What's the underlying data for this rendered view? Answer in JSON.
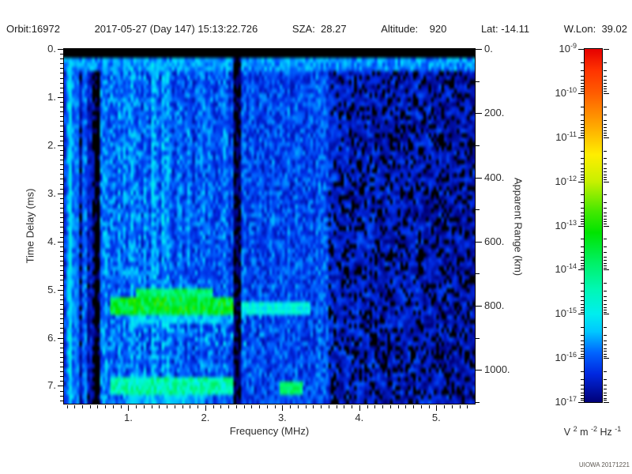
{
  "header": {
    "items": [
      "Orbit:16972",
      "2017-05-27 (Day 147) 15:13:22.726",
      "SZA:  28.27",
      "Altitude:    920",
      "Lat: -14.11",
      "W.Lon:  39.02"
    ]
  },
  "watermark": "UIOWA 20171221",
  "colors": {
    "background": "#ffffff",
    "text": "#2e2e2e",
    "axis": "#000000",
    "watermark": "#5d5852",
    "offscale": "#000000"
  },
  "chart_data": {
    "type": "heatmap",
    "title": "",
    "xlabel": "Frequency (MHz)",
    "ylabel_left": "Time Delay (ms)",
    "ylabel_right": "Apparent Range (km)",
    "x_axis": {
      "range": [
        0.164,
        5.5
      ],
      "tick_values": [
        1,
        2,
        3,
        4,
        5
      ],
      "tick_labels": [
        "1.",
        "2.",
        "3.",
        "4.",
        "5."
      ],
      "minor_step": 0.1
    },
    "y_axis": {
      "range": [
        0,
        7.37
      ],
      "tick_values": [
        0,
        1,
        2,
        3,
        4,
        5,
        6,
        7
      ],
      "tick_labels": [
        "0.",
        "1.",
        "2.",
        "3.",
        "4.",
        "5.",
        "6.",
        "7."
      ],
      "minor_step": 0.1
    },
    "y2_axis": {
      "range": [
        0,
        1105
      ],
      "tick_values": [
        0,
        200,
        400,
        600,
        800,
        1000
      ],
      "tick_labels": [
        "0.",
        "200.",
        "400.",
        "600.",
        "800.",
        "1000."
      ],
      "minor_step": 100
    },
    "colorbar": {
      "scale": "log",
      "mantissa": "10",
      "exponents": [
        "-9",
        "-10",
        "-11",
        "-12",
        "-13",
        "-14",
        "-15",
        "-16",
        "-17"
      ],
      "units_parts": [
        {
          "t": "V ",
          "s": 0
        },
        {
          "t": "2",
          "s": 1
        },
        {
          "t": " m ",
          "s": 0
        },
        {
          "t": "-2",
          "s": 1
        },
        {
          "t": " Hz ",
          "s": 0
        },
        {
          "t": "-1",
          "s": 1
        }
      ],
      "stops": [
        {
          "p": 0.0,
          "c": "#e60000"
        },
        {
          "p": 0.06,
          "c": "#ff3300"
        },
        {
          "p": 0.125,
          "c": "#ff5c00"
        },
        {
          "p": 0.22,
          "c": "#ffaa00"
        },
        {
          "p": 0.3,
          "c": "#ffee00"
        },
        {
          "p": 0.375,
          "c": "#c8f000"
        },
        {
          "p": 0.46,
          "c": "#44e800"
        },
        {
          "p": 0.52,
          "c": "#00e400"
        },
        {
          "p": 0.6,
          "c": "#00f060"
        },
        {
          "p": 0.68,
          "c": "#00f8b4"
        },
        {
          "p": 0.75,
          "c": "#00eeee"
        },
        {
          "p": 0.8,
          "c": "#00c8ff"
        },
        {
          "p": 0.86,
          "c": "#0064ff"
        },
        {
          "p": 0.92,
          "c": "#0028e0"
        },
        {
          "p": 1.0,
          "c": "#000078"
        }
      ]
    },
    "spectrogram": {
      "seed": 16972,
      "grid": {
        "nf": 160,
        "nt": 80
      },
      "value_range": [
        -17,
        -9
      ],
      "base_level": -16.2,
      "noise_amp": 0.55,
      "top_band": {
        "t_max": 0.18,
        "level": -18
      },
      "freq_bands": [
        {
          "f0": 0.164,
          "f1": 0.43,
          "mode": "striation",
          "min": -16.9,
          "max": -15.0
        },
        {
          "f0": 0.43,
          "f1": 0.63,
          "mode": "striation",
          "min": -17.5,
          "max": -15.9
        },
        {
          "f0": 0.63,
          "f1": 1.58,
          "base": -15.8,
          "var": 0.55,
          "col_var": 0.35
        },
        {
          "f0": 1.58,
          "f1": 2.36,
          "base": -16.0,
          "var": 0.5,
          "col_var": 0.25
        },
        {
          "f0": 2.45,
          "f1": 3.6,
          "base": -16.1,
          "var": 0.5,
          "col_var": 0.15
        },
        {
          "f0": 3.6,
          "f1": 5.51,
          "base": -16.45,
          "var": 0.6,
          "col_var": 0.1,
          "dropout": 0.22,
          "slope": -0.1
        }
      ],
      "bright_vlines": [
        {
          "f": 0.24,
          "w": 0.025,
          "level": -15.1,
          "dash": 0
        },
        {
          "f": 0.33,
          "w": 0.02,
          "level": -15.8,
          "dash": 0
        },
        {
          "f": 1.33,
          "w": 0.025,
          "level": -15.3,
          "dash": 2
        },
        {
          "f": 3.0,
          "w": 0.025,
          "level": -16.0,
          "dash": 0,
          "t_min": 4.0
        }
      ],
      "dark_vlines": [
        {
          "f": 2.405,
          "w": 0.05,
          "level": -17.25
        }
      ],
      "echo_traces": [
        {
          "t": 0.28,
          "th": 0.14,
          "f0": 0.164,
          "f1": 5.5,
          "level": -15.7,
          "var": 0.45
        },
        {
          "t": 5.15,
          "th": 0.14,
          "f0": 1.1,
          "f1": 2.1,
          "level": -13.9,
          "var": 0.5
        },
        {
          "t": 5.36,
          "th": 0.16,
          "f0": 0.77,
          "f1": 2.36,
          "level": -13.4,
          "var": 0.7
        },
        {
          "t": 5.38,
          "th": 0.13,
          "f0": 2.45,
          "f1": 3.35,
          "level": -14.9,
          "var": 0.45
        },
        {
          "t": 5.62,
          "th": 0.12,
          "f0": 1.0,
          "f1": 2.2,
          "level": -15.3,
          "var": 0.5
        },
        {
          "t": 7.0,
          "th": 0.15,
          "f0": 0.78,
          "f1": 2.35,
          "level": -14.4,
          "var": 0.65
        },
        {
          "t": 7.03,
          "th": 0.13,
          "f0": 2.95,
          "f1": 3.25,
          "level": -13.9,
          "var": 0.35
        },
        {
          "t": 7.28,
          "th": 0.12,
          "f0": 0.95,
          "f1": 2.0,
          "level": -15.4,
          "var": 0.4
        }
      ],
      "scatter_blobs": {
        "t0": 5.55,
        "t1": 6.2,
        "f0": 1.0,
        "f1": 2.8,
        "prob": 0.1,
        "level": -15.3
      }
    }
  }
}
